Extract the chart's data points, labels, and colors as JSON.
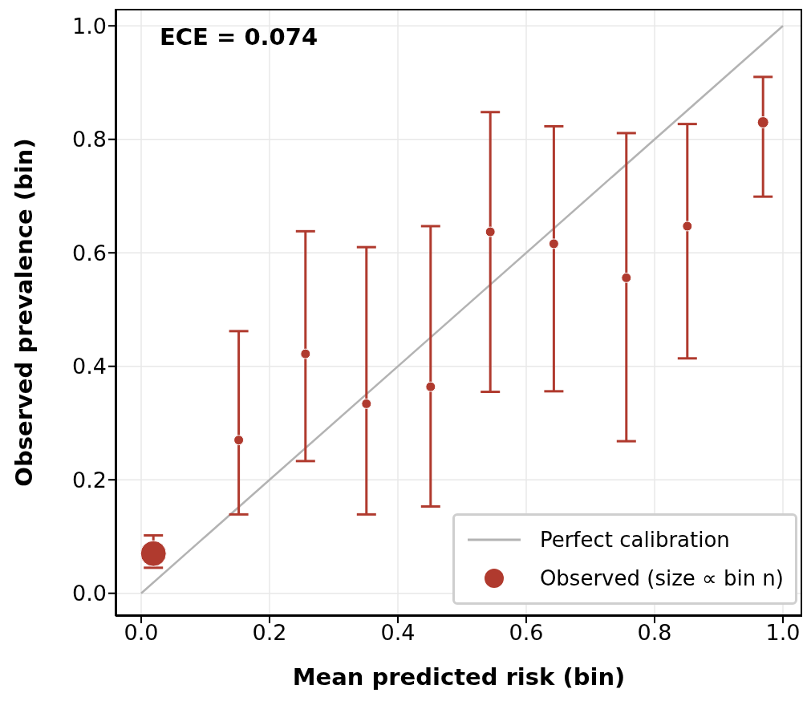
{
  "chart_data": {
    "type": "scatter",
    "xlabel": "Mean predicted risk (bin)",
    "ylabel": "Observed prevalence (bin)",
    "annotations": [
      "ECE = 0.074"
    ],
    "xlim": [
      -0.04,
      1.03
    ],
    "ylim": [
      -0.04,
      1.03
    ],
    "xticks": [
      {
        "value": 0,
        "label": "0.0"
      },
      0.2,
      0.4,
      0.6,
      0.8,
      {
        "value": 1,
        "label": "1.0"
      }
    ],
    "yticks": [
      {
        "value": 0,
        "label": "0.0"
      },
      0.2,
      0.4,
      0.6,
      0.8,
      {
        "value": 1,
        "label": "1.0"
      }
    ],
    "grid": true,
    "legend": "bottom right",
    "marker": "circle",
    "series": [
      {
        "name": "Perfect calibration",
        "type": "line",
        "color": "#b3b3b3",
        "line_style": "solid",
        "marker": "none",
        "x": [
          0,
          1
        ],
        "values": [
          0,
          1
        ]
      },
      {
        "name": "Observed (size ∝ bin n)",
        "color": "#b03a2e",
        "x": [
          0.019,
          0.152,
          0.256,
          0.351,
          0.451,
          0.544,
          0.643,
          0.756,
          0.851,
          0.969
        ],
        "values": [
          0.07,
          0.27,
          0.422,
          0.334,
          0.364,
          0.637,
          0.616,
          0.556,
          0.647,
          0.83
        ],
        "errors": [
          [
            0.045,
            0.102
          ],
          [
            0.139,
            0.462
          ],
          [
            0.233,
            0.638
          ],
          [
            0.139,
            0.61
          ],
          [
            0.153,
            0.647
          ],
          [
            0.355,
            0.848
          ],
          [
            0.356,
            0.823
          ],
          [
            0.268,
            0.811
          ],
          [
            0.414,
            0.827
          ],
          [
            0.699,
            0.91
          ]
        ],
        "sizes": [
          1,
          0.14,
          0.14,
          0.14,
          0.14,
          0.14,
          0.14,
          0.14,
          0.14,
          0.19
        ]
      }
    ]
  }
}
